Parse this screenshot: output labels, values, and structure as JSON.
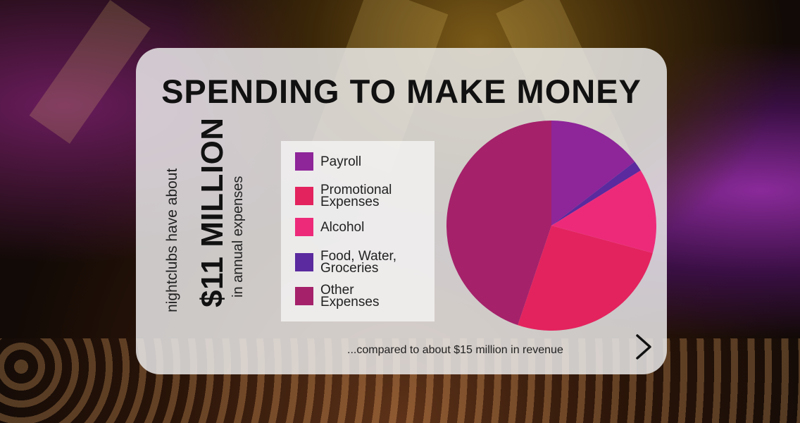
{
  "title": "SPENDING TO MAKE MONEY",
  "side_text": {
    "line1": "nightclubs have about",
    "line2": "$11 MILLION",
    "line3": "in annual expenses"
  },
  "footnote": "...compared to about $15 million in revenue",
  "icons": {
    "next": "chevron-right-icon"
  },
  "chart_data": {
    "type": "pie",
    "series": [
      {
        "name": "Payroll",
        "value": 14.6,
        "color": "#8e2599"
      },
      {
        "name": "Food, Water, Groceries",
        "value": 1.6,
        "color": "#5a2a9e"
      },
      {
        "name": "Alcohol",
        "value": 13.0,
        "color": "#ed2a7a"
      },
      {
        "name": "Promotional Expenses",
        "value": 26.0,
        "color": "#e3235e"
      },
      {
        "name": "Other Expenses",
        "value": 44.8,
        "color": "#a5216a"
      }
    ],
    "legend": [
      {
        "label": "Payroll",
        "color": "#8e2599"
      },
      {
        "label": "Promotional Expenses",
        "color": "#e3235e"
      },
      {
        "label": "Alcohol",
        "color": "#ed2a7a"
      },
      {
        "label": "Food, Water, Groceries",
        "color": "#5a2a9e"
      },
      {
        "label": "Other Expenses",
        "color": "#a5216a"
      }
    ],
    "legend_position": "left"
  }
}
